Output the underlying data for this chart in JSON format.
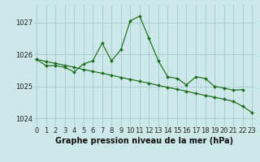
{
  "title": "Graphe pression niveau de la mer (hPa)",
  "background_color": "#cce8e8",
  "grid_color": "#aacccc",
  "line_color": "#1a6e1a",
  "series1": {
    "x": [
      0,
      1,
      2,
      3,
      4,
      5,
      6,
      7,
      8,
      9,
      10,
      11,
      12,
      13,
      14,
      15,
      16,
      17,
      18,
      19,
      20,
      21,
      22,
      23
    ],
    "y": [
      1025.85,
      1025.65,
      1025.65,
      1025.6,
      1025.45,
      1025.7,
      1025.8,
      1026.35,
      1025.8,
      1026.15,
      1027.05,
      1027.2,
      1026.5,
      1025.8,
      1025.3,
      1025.25,
      1025.05,
      1025.3,
      1025.25,
      1025.0,
      1024.95,
      1024.88,
      1024.9,
      null
    ]
  },
  "series2": {
    "x": [
      0,
      1,
      2,
      3,
      4,
      5,
      6,
      7,
      8,
      9,
      10,
      11,
      12,
      13,
      14,
      15,
      16,
      17,
      18,
      19,
      20,
      21,
      22,
      23
    ],
    "y": [
      1025.85,
      1025.78,
      1025.72,
      1025.66,
      1025.6,
      1025.53,
      1025.47,
      1025.41,
      1025.35,
      1025.28,
      1025.22,
      1025.16,
      1025.1,
      1025.03,
      1024.97,
      1024.91,
      1024.85,
      1024.78,
      1024.72,
      1024.66,
      1024.6,
      1024.53,
      1024.38,
      1024.18
    ]
  },
  "yticks": [
    1024,
    1025,
    1026,
    1027
  ],
  "xticks": [
    0,
    1,
    2,
    3,
    4,
    5,
    6,
    7,
    8,
    9,
    10,
    11,
    12,
    13,
    14,
    15,
    16,
    17,
    18,
    19,
    20,
    21,
    22,
    23
  ],
  "xlim": [
    -0.3,
    23.3
  ],
  "ylim": [
    1023.75,
    1027.55
  ],
  "tick_fontsize": 6,
  "xlabel_fontsize": 7,
  "figsize": [
    3.2,
    2.0
  ],
  "dpi": 100
}
